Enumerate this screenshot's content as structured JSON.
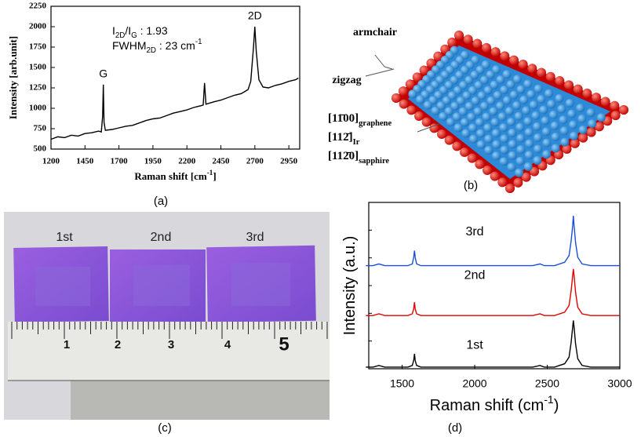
{
  "chart_data": [
    {
      "type": "line",
      "caption": "(a)",
      "x_label": [
        {
          "text": "Raman shift [cm"
        },
        {
          "text": "-1",
          "shift": "super"
        },
        {
          "text": "]"
        }
      ],
      "y_label": [
        {
          "text": "Intensity [arb.unit]"
        }
      ],
      "annotations": [
        {
          "parts": [
            {
              "text": "G"
            }
          ],
          "x": 1585,
          "y": 1420
        },
        {
          "parts": [
            {
              "text": "2D"
            }
          ],
          "x": 2700,
          "y": 2130
        },
        {
          "parts": [
            {
              "text": "I"
            },
            {
              "text": "2D",
              "shift": "sub"
            },
            {
              "text": "/I"
            },
            {
              "text": "G",
              "shift": "sub"
            },
            {
              "text": " : 1.93"
            }
          ],
          "x": 1650,
          "y": 1940
        },
        {
          "parts": [
            {
              "text": "FWHM"
            },
            {
              "text": "2D",
              "shift": "sub"
            },
            {
              "text": " : 23 cm"
            },
            {
              "text": "-1",
              "shift": "super"
            }
          ],
          "x": 1650,
          "y": 1760
        }
      ],
      "x": [
        1200,
        1250,
        1300,
        1350,
        1400,
        1450,
        1500,
        1550,
        1570,
        1580,
        1585,
        1590,
        1600,
        1650,
        1700,
        1750,
        1800,
        1850,
        1900,
        1950,
        2000,
        2050,
        2100,
        2150,
        2200,
        2250,
        2300,
        2320,
        2330,
        2340,
        2400,
        2450,
        2500,
        2550,
        2600,
        2650,
        2670,
        2690,
        2700,
        2710,
        2730,
        2760,
        2800,
        2850,
        2900,
        2950,
        3000,
        3020
      ],
      "values": [
        620,
        650,
        640,
        670,
        660,
        690,
        700,
        720,
        710,
        900,
        1290,
        830,
        730,
        740,
        760,
        780,
        790,
        820,
        850,
        870,
        880,
        910,
        940,
        960,
        980,
        1010,
        1030,
        1040,
        1310,
        1050,
        1080,
        1100,
        1130,
        1160,
        1180,
        1230,
        1330,
        1750,
        2000,
        1700,
        1350,
        1260,
        1250,
        1280,
        1300,
        1330,
        1350,
        1370
      ],
      "color": "#000000",
      "xlim": [
        1200,
        3030
      ],
      "xticks": [
        1200,
        1450,
        1700,
        1950,
        2200,
        2450,
        2700,
        2950
      ],
      "ylim": [
        500,
        2250
      ],
      "yticks": [
        500,
        750,
        1000,
        1250,
        1500,
        1750,
        2000,
        2250
      ]
    },
    {
      "type": "line",
      "caption": "(d)",
      "x_label": [
        {
          "text": "Raman shift (cm"
        },
        {
          "text": "-1",
          "shift": "super"
        },
        {
          "text": ")"
        }
      ],
      "y_label": [
        {
          "text": "Intensity (a.u.)"
        }
      ],
      "annotations": [
        {
          "parts": [
            {
              "text": "3rd"
            }
          ],
          "x": 2000,
          "y": 8.2
        },
        {
          "parts": [
            {
              "text": "2nd"
            }
          ],
          "x": 2000,
          "y": 5.6
        },
        {
          "parts": [
            {
              "text": "1st"
            }
          ],
          "x": 2000,
          "y": 1.4
        }
      ],
      "x": [
        1250,
        1300,
        1340,
        1380,
        1450,
        1540,
        1570,
        1580,
        1585,
        1590,
        1600,
        1630,
        1800,
        2100,
        2400,
        2450,
        2480,
        2550,
        2620,
        2650,
        2665,
        2675,
        2680,
        2685,
        2695,
        2710,
        2740,
        2800,
        2900,
        3000
      ],
      "series": [
        {
          "name": "1st",
          "color": "#000000",
          "values": [
            0.1,
            0.1,
            0.2,
            0.1,
            0.1,
            0.1,
            0.2,
            0.5,
            0.9,
            0.5,
            0.2,
            0.1,
            0.1,
            0.1,
            0.1,
            0.2,
            0.1,
            0.1,
            0.3,
            0.7,
            1.6,
            2.5,
            2.9,
            2.5,
            1.5,
            0.6,
            0.2,
            0.1,
            0.1,
            0.1
          ]
        },
        {
          "name": "2nd",
          "color": "#e00000",
          "values": [
            3.2,
            3.2,
            3.3,
            3.2,
            3.2,
            3.2,
            3.3,
            3.6,
            4.0,
            3.6,
            3.3,
            3.2,
            3.2,
            3.2,
            3.2,
            3.3,
            3.2,
            3.2,
            3.4,
            3.8,
            4.7,
            5.6,
            6.0,
            5.6,
            4.6,
            3.7,
            3.3,
            3.2,
            3.2,
            3.2
          ]
        },
        {
          "name": "3rd",
          "color": "#1a4fd6",
          "values": [
            6.2,
            6.2,
            6.3,
            6.2,
            6.2,
            6.2,
            6.3,
            6.7,
            7.1,
            6.7,
            6.3,
            6.2,
            6.2,
            6.2,
            6.2,
            6.3,
            6.2,
            6.2,
            6.4,
            6.8,
            7.7,
            8.6,
            9.2,
            8.6,
            7.6,
            6.7,
            6.3,
            6.2,
            6.2,
            6.2
          ]
        }
      ],
      "xlim": [
        1270,
        3000
      ],
      "xticks": [
        1500,
        2000,
        2500,
        3000
      ],
      "ylim": [
        0,
        10
      ]
    }
  ],
  "diagram": {
    "caption": "(b)",
    "directions": [
      "armchair",
      "zigzag"
    ],
    "orientations": [
      [
        {
          "text": "[11̄00]"
        },
        {
          "text": "graphene",
          "shift": "sub"
        }
      ],
      [
        {
          "text": "[112̄]"
        },
        {
          "text": "Ir",
          "shift": "sub"
        }
      ],
      [
        {
          "text": "[112̄0]"
        },
        {
          "text": "sapphire",
          "shift": "sub"
        }
      ]
    ]
  },
  "photo": {
    "caption": "(c)",
    "sample_labels": [
      "1st",
      "2nd",
      "3rd"
    ],
    "ruler_labels": [
      "1",
      "2",
      "3",
      "4",
      "5"
    ]
  }
}
